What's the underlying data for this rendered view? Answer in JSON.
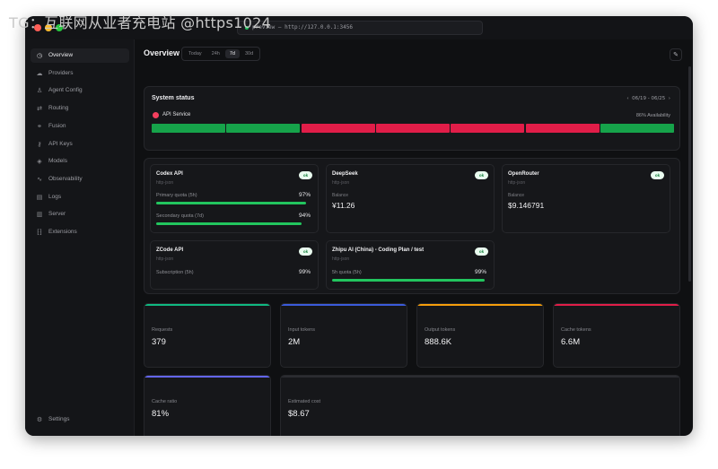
{
  "watermark": "TG：互联网从业者充电站 @https1024",
  "titlebar": {
    "traffic_colors": [
      "#ff5f57",
      "#febc2e",
      "#28c840"
    ],
    "address": "preview — http://127.0.0.1:3456"
  },
  "sidebar": {
    "items": [
      {
        "label": "Overview",
        "icon": "gauge-icon",
        "glyph": "◷",
        "active": true
      },
      {
        "label": "Providers",
        "icon": "cloud-icon",
        "glyph": "☁"
      },
      {
        "label": "Agent Config",
        "icon": "agent-icon",
        "glyph": "♙"
      },
      {
        "label": "Routing",
        "icon": "routing-icon",
        "glyph": "⇄"
      },
      {
        "label": "Fusion",
        "icon": "fusion-icon",
        "glyph": "⚭"
      },
      {
        "label": "API Keys",
        "icon": "key-icon",
        "glyph": "⚷"
      },
      {
        "label": "Models",
        "icon": "cube-icon",
        "glyph": "◈"
      },
      {
        "label": "Observability",
        "icon": "activity-icon",
        "glyph": "∿"
      },
      {
        "label": "Logs",
        "icon": "file-icon",
        "glyph": "▤"
      },
      {
        "label": "Server",
        "icon": "server-icon",
        "glyph": "▥"
      },
      {
        "label": "Extensions",
        "icon": "puzzle-icon",
        "glyph": "⁅⁆"
      }
    ],
    "settings": {
      "label": "Settings",
      "icon": "gear-icon",
      "glyph": "⚙"
    }
  },
  "header": {
    "title": "Overview",
    "ranges": [
      "Today",
      "24h",
      "7d",
      "30d"
    ],
    "active_range": "7d",
    "edit_icon": "pencil-icon"
  },
  "system_status": {
    "title": "System status",
    "date_range": "06/19 - 06/25",
    "prev_icon": "chevron-left-icon",
    "next_icon": "chevron-right-icon",
    "service": "API Service",
    "availability": "86% Availability",
    "days": [
      "ok",
      "ok",
      "down",
      "down",
      "down",
      "down",
      "ok"
    ],
    "colors": {
      "ok": "#16a34a",
      "down": "#e11d48",
      "dot": "#f43f5e"
    }
  },
  "providers": [
    {
      "name": "Codex API",
      "sub": "http-json",
      "badge": "ok",
      "quotas": [
        {
          "label": "Primary quota (5h)",
          "value": "97%",
          "fill": 0.97
        },
        {
          "label": "Secondary quota (7d)",
          "value": "94%",
          "fill": 0.94
        }
      ]
    },
    {
      "name": "DeepSeek",
      "sub": "http-json",
      "badge": "ok",
      "balance_label": "Balance",
      "balance": "¥11.26"
    },
    {
      "name": "OpenRouter",
      "sub": "http-json",
      "badge": "ok",
      "balance_label": "Balance",
      "balance": "$9.146791"
    },
    {
      "name": "ZCode API",
      "sub": "http-json",
      "badge": "ok",
      "quotas": [
        {
          "label": "Subscription (5h)",
          "value": "99%"
        }
      ]
    },
    {
      "name": "Zhipu AI (China) - Coding Plan / test",
      "sub": "http-json",
      "badge": "ok",
      "quotas": [
        {
          "label": "5h quota (5h)",
          "value": "99%",
          "fill": 0.99
        }
      ]
    }
  ],
  "metrics": [
    {
      "label": "Requests",
      "value": "379",
      "color": "#10b981"
    },
    {
      "label": "Input tokens",
      "value": "2M",
      "color": "#3b5bdb"
    },
    {
      "label": "Output tokens",
      "value": "888.6K",
      "color": "#f59e0b"
    },
    {
      "label": "Cache tokens",
      "value": "6.6M",
      "color": "#e11d48"
    },
    {
      "label": "Cache ratio",
      "value": "81%",
      "color": "#6366f1"
    },
    {
      "label": "Estimated cost",
      "value": "$8.67",
      "color": "#2b2c31"
    }
  ]
}
